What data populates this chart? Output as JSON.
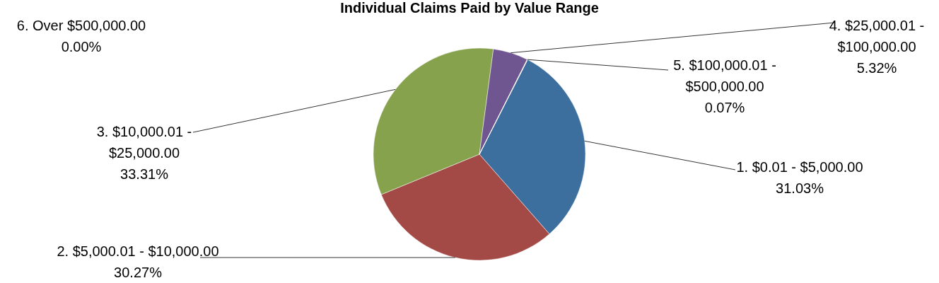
{
  "chart_data": {
    "type": "pie",
    "title": "Individual Claims Paid by Value Range",
    "categories": [
      "1. $0.01 - $5,000.00",
      "2. $5,000.01 - $10,000.00",
      "3. $10,000.01 - $25,000.00",
      "4. $25,000.01 - $100,000.00",
      "5. $100,000.01 - $500,000.00",
      "6. Over $500,000.00"
    ],
    "values": [
      31.03,
      30.27,
      33.31,
      5.32,
      0.07,
      0.0
    ],
    "colors": [
      "#3c6e9e",
      "#a34a47",
      "#86a24d",
      "#6f5690",
      "#d9843f",
      "#3f9fb8"
    ],
    "value_labels": [
      "31.03%",
      "30.27%",
      "33.31%",
      "5.32%",
      "0.07%",
      "0.00%"
    ],
    "legend": false
  }
}
